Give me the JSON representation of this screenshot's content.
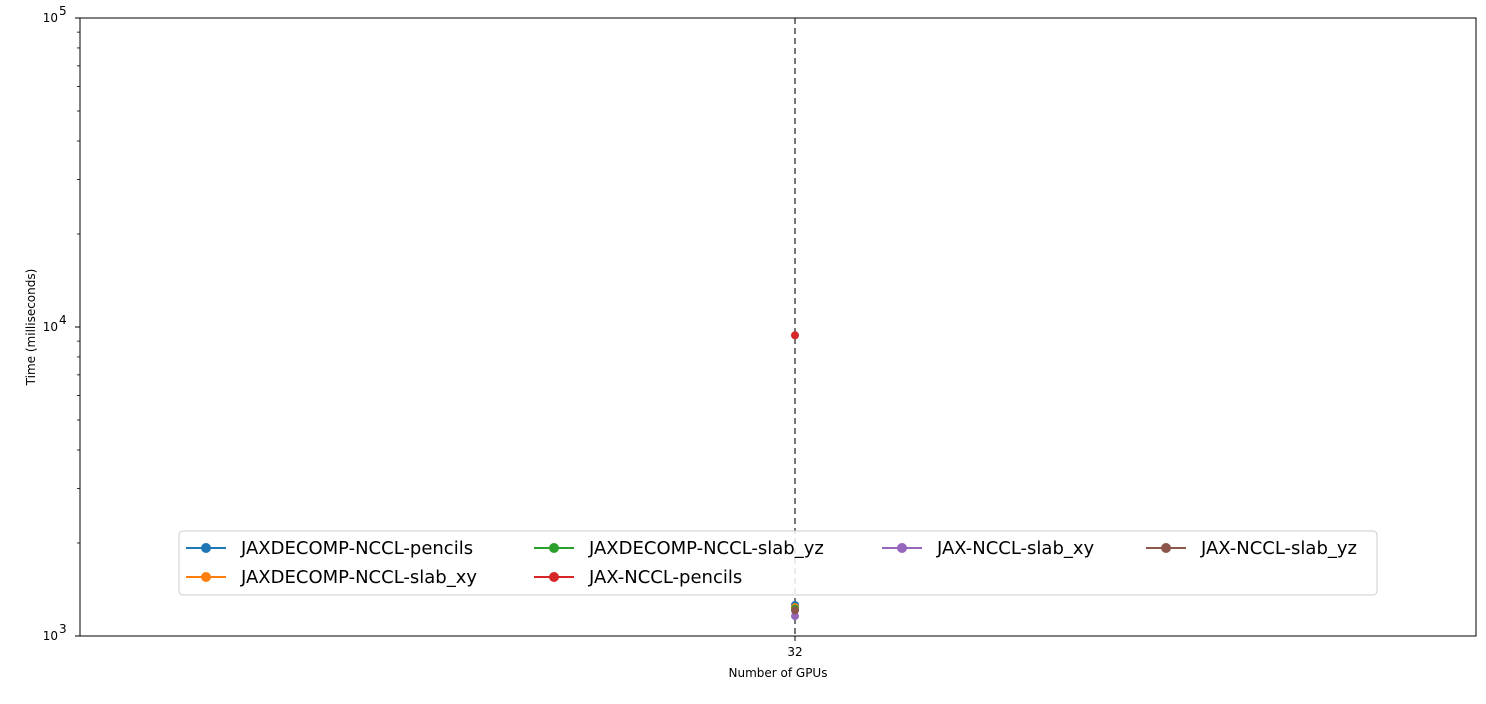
{
  "chart_data": {
    "type": "line",
    "xlabel": "Number of GPUs",
    "ylabel": "Time (milliseconds)",
    "y_scale": "log",
    "ylim": [
      1000,
      100000
    ],
    "x_ticks": [
      {
        "value": 32,
        "label": "32"
      }
    ],
    "y_ticks": [
      {
        "value": 1000,
        "base": "10",
        "exp": "3"
      },
      {
        "value": 10000,
        "base": "10",
        "exp": "4"
      },
      {
        "value": 100000,
        "base": "10",
        "exp": "5"
      }
    ],
    "vline": {
      "x": 32,
      "style": "dashed",
      "color": "#777777"
    },
    "legend": {
      "placement": "lower-center",
      "columns": 4
    },
    "grid": false,
    "series": [
      {
        "name": "JAXDECOMP-NCCL-pencils",
        "color": "#1f77b4",
        "x": [
          32
        ],
        "y": [
          1260
        ]
      },
      {
        "name": "JAXDECOMP-NCCL-slab_xy",
        "color": "#ff7f0e",
        "x": [
          32
        ],
        "y": [
          1240
        ]
      },
      {
        "name": "JAXDECOMP-NCCL-slab_yz",
        "color": "#2ca02c",
        "x": [
          32
        ],
        "y": [
          1225
        ]
      },
      {
        "name": "JAX-NCCL-pencils",
        "color": "#d62728",
        "x": [
          32
        ],
        "y": [
          9400
        ]
      },
      {
        "name": "JAX-NCCL-slab_xy",
        "color": "#9467bd",
        "x": [
          32
        ],
        "y": [
          1160
        ]
      },
      {
        "name": "JAX-NCCL-slab_yz",
        "color": "#8c564b",
        "x": [
          32
        ],
        "y": [
          1210
        ]
      }
    ]
  }
}
